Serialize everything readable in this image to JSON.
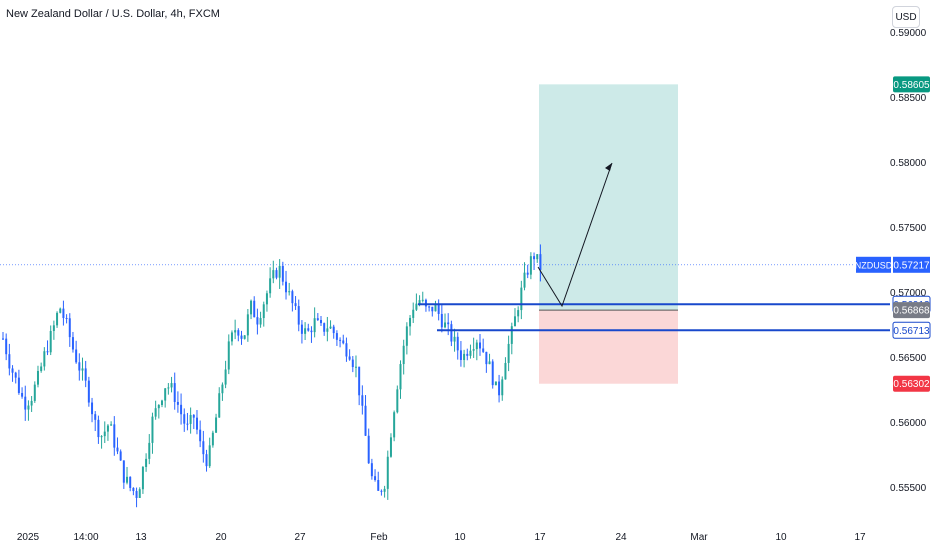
{
  "header": {
    "title": "New Zealand Dollar / U.S. Dollar, 4h, FXCM",
    "currency_button": "USD"
  },
  "colors": {
    "up": "#26a69a",
    "down": "#2962ff",
    "hline": "#1848cc",
    "target_zone": "#cdeae8",
    "stop_zone": "#fbd7d7",
    "price_line": "#2962ff",
    "target_label": "#089981",
    "stop_label": "#f23645",
    "entry_label": "#787b86",
    "axis_text": "#131722"
  },
  "chart_data": {
    "type": "candlestick",
    "symbol": "NZDUSD",
    "ylim": [
      0.5525,
      0.5905
    ],
    "y_ticks": [
      "0.55500",
      "0.56000",
      "0.56500",
      "0.57000",
      "0.57500",
      "0.58000",
      "0.58500",
      "0.59000"
    ],
    "x_ticks": [
      "2025",
      "14:00",
      "13",
      "20",
      "27",
      "Feb",
      "10",
      "17",
      "24",
      "Mar",
      "10",
      "17"
    ],
    "path": [
      0.5665,
      0.5645,
      0.563,
      0.5615,
      0.562,
      0.5635,
      0.5655,
      0.567,
      0.569,
      0.5675,
      0.5655,
      0.564,
      0.5625,
      0.56,
      0.559,
      0.56,
      0.558,
      0.556,
      0.555,
      0.5545,
      0.557,
      0.56,
      0.5615,
      0.563,
      0.5625,
      0.561,
      0.5595,
      0.5605,
      0.558,
      0.557,
      0.56,
      0.563,
      0.566,
      0.5675,
      0.5665,
      0.569,
      0.568,
      0.5695,
      0.571,
      0.572,
      0.5705,
      0.569,
      0.5675,
      0.5668,
      0.5678,
      0.5672,
      0.5675,
      0.5668,
      0.566,
      0.5655,
      0.564,
      0.56,
      0.556,
      0.5545,
      0.5555,
      0.56,
      0.564,
      0.567,
      0.569,
      0.5695,
      0.5685,
      0.569,
      0.568,
      0.567,
      0.566,
      0.565,
      0.566,
      0.5665,
      0.5655,
      0.564,
      0.562,
      0.565,
      0.567,
      0.5695,
      0.5715,
      0.573,
      0.572
    ],
    "price_levels": [
      {
        "label": "NZDUSD",
        "value": 0.57217,
        "text": "0.57217"
      },
      {
        "label": "target",
        "value": 0.58605,
        "text": "0.58605"
      },
      {
        "label": "level_1",
        "value": 0.56913,
        "text": "0.56913"
      },
      {
        "label": "entry",
        "value": 0.56868,
        "text": "0.56868"
      },
      {
        "label": "level_2",
        "value": 0.56713,
        "text": "0.56713"
      },
      {
        "label": "stop",
        "value": 0.56302,
        "text": "0.56302"
      }
    ],
    "projection_arrow": [
      0.572,
      0.569,
      0.58
    ]
  }
}
